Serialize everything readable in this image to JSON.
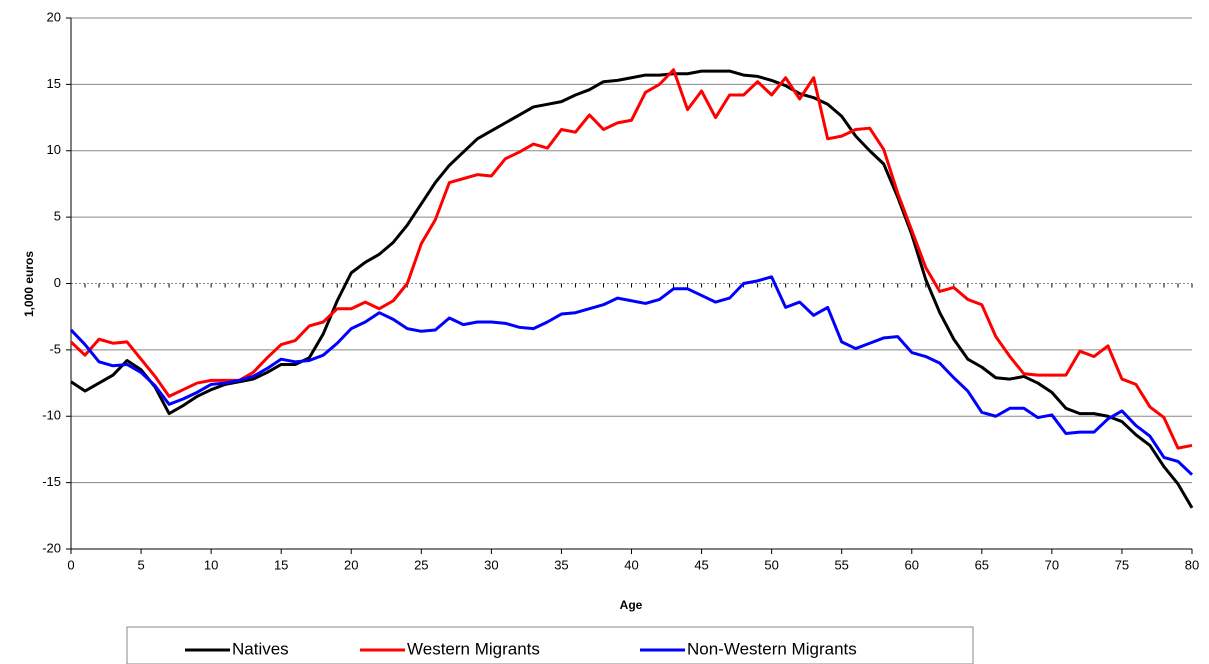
{
  "chart_data": {
    "type": "line",
    "x_label": "Age",
    "y_label": "1,000 euros",
    "x": [
      0,
      1,
      2,
      3,
      4,
      5,
      6,
      7,
      8,
      9,
      10,
      11,
      12,
      13,
      14,
      15,
      16,
      17,
      18,
      19,
      20,
      21,
      22,
      23,
      24,
      25,
      26,
      27,
      28,
      29,
      30,
      31,
      32,
      33,
      34,
      35,
      36,
      37,
      38,
      39,
      40,
      41,
      42,
      43,
      44,
      45,
      46,
      47,
      48,
      49,
      50,
      51,
      52,
      53,
      54,
      55,
      56,
      57,
      58,
      59,
      60,
      61,
      62,
      63,
      64,
      65,
      66,
      67,
      68,
      69,
      70,
      71,
      72,
      73,
      74,
      75,
      76,
      77,
      78,
      79,
      80
    ],
    "series": [
      {
        "name": "Natives",
        "color": "#000000",
        "values": [
          -7.4,
          -8.1,
          -7.5,
          -6.9,
          -5.8,
          -6.5,
          -7.8,
          -9.8,
          -9.2,
          -8.5,
          -8.0,
          -7.6,
          -7.4,
          -7.2,
          -6.7,
          -6.1,
          -6.1,
          -5.6,
          -3.8,
          -1.3,
          0.8,
          1.6,
          2.2,
          3.1,
          4.4,
          6.0,
          7.6,
          8.9,
          9.9,
          10.9,
          11.5,
          12.1,
          12.7,
          13.3,
          13.5,
          13.7,
          14.2,
          14.6,
          15.2,
          15.3,
          15.5,
          15.7,
          15.7,
          15.8,
          15.8,
          16.0,
          16.0,
          16.0,
          15.7,
          15.6,
          15.3,
          14.9,
          14.3,
          14.0,
          13.5,
          12.6,
          11.1,
          10.0,
          9.0,
          6.5,
          3.7,
          0.3,
          -2.2,
          -4.2,
          -5.7,
          -6.3,
          -7.1,
          -7.2,
          -7.0,
          -7.5,
          -8.2,
          -9.4,
          -9.8,
          -9.8,
          -10.0,
          -10.4,
          -11.4,
          -12.2,
          -13.8,
          -15.1,
          -16.9
        ]
      },
      {
        "name": "Western Migrants",
        "color": "#ff0000",
        "values": [
          -4.4,
          -5.4,
          -4.2,
          -4.5,
          -4.4,
          -5.7,
          -7.0,
          -8.5,
          -8.0,
          -7.5,
          -7.3,
          -7.3,
          -7.3,
          -6.7,
          -5.6,
          -4.6,
          -4.3,
          -3.2,
          -2.9,
          -1.9,
          -1.9,
          -1.4,
          -1.9,
          -1.3,
          0.0,
          3.0,
          4.8,
          7.6,
          7.9,
          8.2,
          8.1,
          9.4,
          9.9,
          10.5,
          10.2,
          11.6,
          11.4,
          12.7,
          11.6,
          12.1,
          12.3,
          14.4,
          15.0,
          16.1,
          13.1,
          14.5,
          12.5,
          14.2,
          14.2,
          15.2,
          14.2,
          15.5,
          13.9,
          15.5,
          10.9,
          11.1,
          11.6,
          11.7,
          10.1,
          6.8,
          4.0,
          1.2,
          -0.6,
          -0.3,
          -1.2,
          -1.6,
          -4.0,
          -5.5,
          -6.8,
          -6.9,
          -6.9,
          -6.9,
          -5.1,
          -5.5,
          -4.7,
          -7.2,
          -7.6,
          -9.3,
          -10.1,
          -12.4,
          -12.2
        ]
      },
      {
        "name": "Non-Western Migrants",
        "color": "#0000ff",
        "values": [
          -3.5,
          -4.6,
          -5.9,
          -6.2,
          -6.1,
          -6.7,
          -7.7,
          -9.1,
          -8.7,
          -8.2,
          -7.6,
          -7.5,
          -7.3,
          -7.0,
          -6.4,
          -5.7,
          -5.9,
          -5.8,
          -5.4,
          -4.5,
          -3.4,
          -2.9,
          -2.2,
          -2.7,
          -3.4,
          -3.6,
          -3.5,
          -2.6,
          -3.1,
          -2.9,
          -2.9,
          -3.0,
          -3.3,
          -3.4,
          -2.9,
          -2.3,
          -2.2,
          -1.9,
          -1.6,
          -1.1,
          -1.3,
          -1.5,
          -1.2,
          -0.4,
          -0.4,
          -0.9,
          -1.4,
          -1.1,
          0.0,
          0.2,
          0.5,
          -1.8,
          -1.4,
          -2.4,
          -1.8,
          -4.4,
          -4.9,
          -4.5,
          -4.1,
          -4.0,
          -5.2,
          -5.5,
          -6.0,
          -7.1,
          -8.1,
          -9.7,
          -10.0,
          -9.4,
          -9.4,
          -10.1,
          -9.9,
          -11.3,
          -11.2,
          -11.2,
          -10.2,
          -9.6,
          -10.7,
          -11.5,
          -13.1,
          -13.4,
          -14.4
        ]
      }
    ],
    "xlim": [
      0,
      80
    ],
    "xticks": [
      0,
      5,
      10,
      15,
      20,
      25,
      30,
      35,
      40,
      45,
      50,
      55,
      60,
      65,
      70,
      75,
      80
    ],
    "ylim": [
      -20,
      20
    ],
    "yticks": [
      -20,
      -15,
      -10,
      -5,
      0,
      5,
      10,
      15,
      20
    ],
    "grid": true,
    "legend": "bottom"
  }
}
